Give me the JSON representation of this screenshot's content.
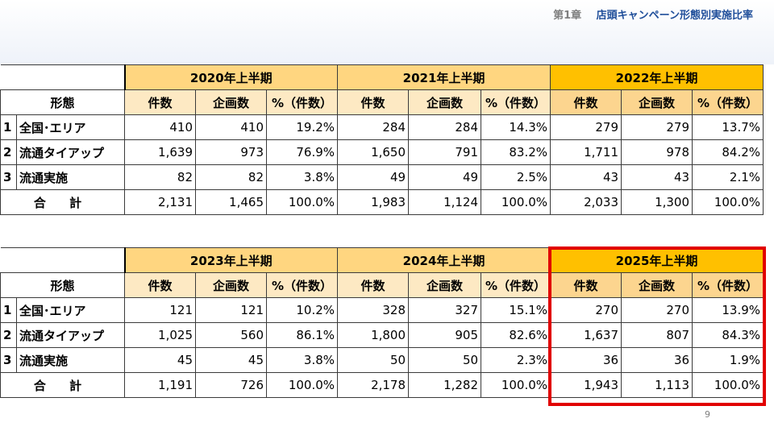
{
  "header": {
    "chapter": "第1章",
    "title": "店頭キャンペーン形態別実施比率"
  },
  "page_number": "9",
  "labels": {
    "type_header": "形態",
    "col_count": "件数",
    "col_plans": "企画数",
    "col_pct": "%（件数）",
    "total": "合 計"
  },
  "rows": [
    {
      "no": "1",
      "label": "全国･エリア"
    },
    {
      "no": "2",
      "label": "流通タイアップ"
    },
    {
      "no": "3",
      "label": "流通実施"
    }
  ],
  "table1": {
    "periods": [
      "2020年上半期",
      "2021年上半期",
      "2022年上半期"
    ],
    "data": [
      [
        "410",
        "410",
        "19.2%",
        "284",
        "284",
        "14.3%",
        "279",
        "279",
        "13.7%"
      ],
      [
        "1,639",
        "973",
        "76.9%",
        "1,650",
        "791",
        "83.2%",
        "1,711",
        "978",
        "84.2%"
      ],
      [
        "82",
        "82",
        "3.8%",
        "49",
        "49",
        "2.5%",
        "43",
        "43",
        "2.1%"
      ]
    ],
    "total": [
      "2,131",
      "1,465",
      "100.0%",
      "1,983",
      "1,124",
      "100.0%",
      "2,033",
      "1,300",
      "100.0%"
    ]
  },
  "table2": {
    "periods": [
      "2023年上半期",
      "2024年上半期",
      "2025年上半期"
    ],
    "data": [
      [
        "121",
        "121",
        "10.2%",
        "328",
        "327",
        "15.1%",
        "270",
        "270",
        "13.9%"
      ],
      [
        "1,025",
        "560",
        "86.1%",
        "1,800",
        "905",
        "82.6%",
        "1,637",
        "807",
        "84.3%"
      ],
      [
        "45",
        "45",
        "3.8%",
        "50",
        "50",
        "2.3%",
        "36",
        "36",
        "1.9%"
      ]
    ],
    "total": [
      "1,191",
      "726",
      "100.0%",
      "2,178",
      "1,282",
      "100.0%",
      "1,943",
      "1,113",
      "100.0%"
    ]
  },
  "colors": {
    "header_light": "#ffd680",
    "header_dark": "#ffc000",
    "highlight": "#e10000"
  }
}
